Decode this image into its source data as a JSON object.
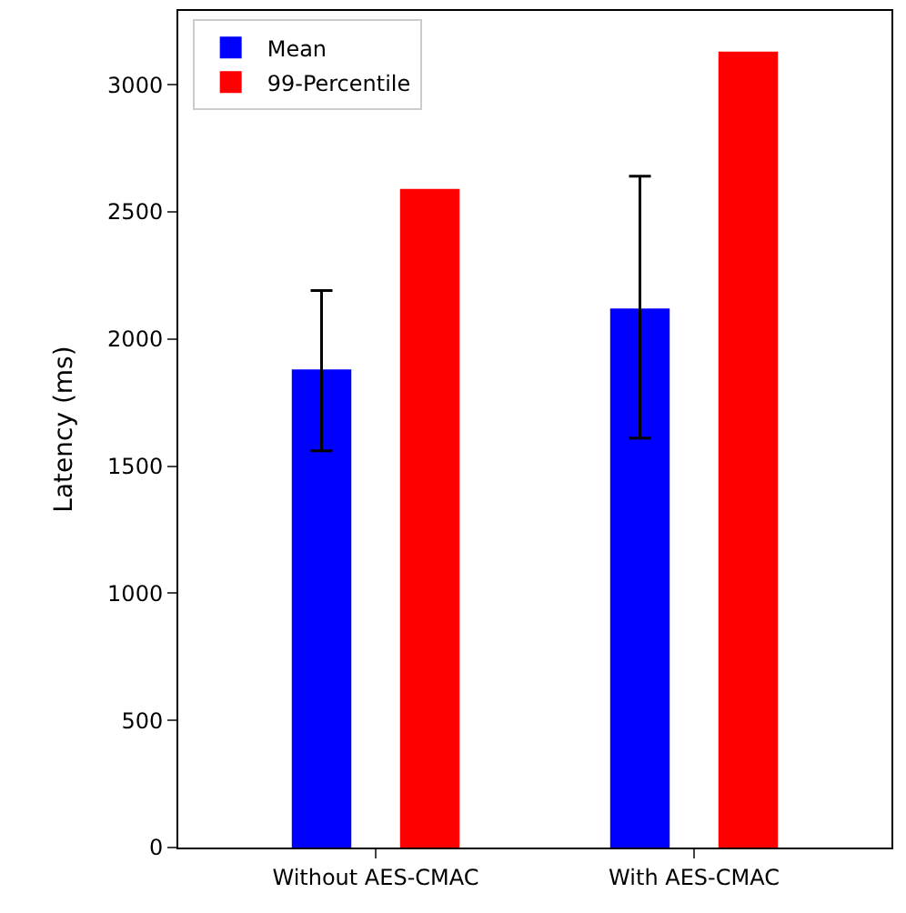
{
  "chart_data": {
    "type": "bar",
    "ylabel": "Latency (ms)",
    "categories": [
      "Without AES-CMAC",
      "With AES-CMAC"
    ],
    "series": [
      {
        "name": "Mean",
        "color": "#0000ff",
        "values": [
          1880,
          2120
        ],
        "errors": [
          [
            1560,
            2190
          ],
          [
            1610,
            2640
          ]
        ]
      },
      {
        "name": "99-Percentile",
        "color": "#ff0000",
        "values": [
          2590,
          3130
        ]
      }
    ],
    "ylim": [
      0,
      3290
    ],
    "yticks": [
      0,
      500,
      1000,
      1500,
      2000,
      2500,
      3000
    ],
    "legend": "top left"
  }
}
